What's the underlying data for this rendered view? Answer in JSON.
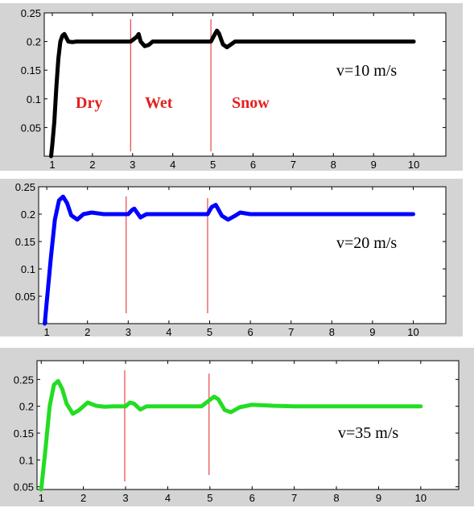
{
  "chart_data": [
    {
      "type": "line",
      "xlim": [
        0.8,
        10.8
      ],
      "ylim": [
        0,
        0.25
      ],
      "xticks": [
        "1",
        "2",
        "3",
        "4",
        "5",
        "6",
        "7",
        "8",
        "9",
        "10"
      ],
      "yticks": [
        "0.05",
        "0.1",
        "0.15",
        "0.2",
        "0.25"
      ],
      "color": "#000000",
      "annotation": "v=10 m/s",
      "regions": [
        "Dry",
        "Wet",
        "Snow"
      ],
      "vlines": [
        2.95,
        4.95
      ],
      "x": [
        0.97,
        1.0,
        1.05,
        1.1,
        1.15,
        1.2,
        1.25,
        1.3,
        1.4,
        1.5,
        1.6,
        2.0,
        2.5,
        2.95,
        3.1,
        3.15,
        3.2,
        3.3,
        3.4,
        3.5,
        3.6,
        4.0,
        4.95,
        5.05,
        5.1,
        5.15,
        5.25,
        5.35,
        5.45,
        5.55,
        5.7,
        6.0,
        8.0,
        10.0
      ],
      "y": [
        0.0,
        0.02,
        0.06,
        0.12,
        0.17,
        0.2,
        0.21,
        0.213,
        0.2,
        0.199,
        0.2,
        0.2,
        0.2,
        0.2,
        0.208,
        0.213,
        0.2,
        0.192,
        0.194,
        0.2,
        0.2,
        0.2,
        0.2,
        0.213,
        0.219,
        0.214,
        0.195,
        0.19,
        0.195,
        0.2,
        0.2,
        0.2,
        0.2,
        0.2
      ]
    },
    {
      "type": "line",
      "xlim": [
        0.8,
        10.8
      ],
      "ylim": [
        0,
        0.25
      ],
      "xticks": [
        "1",
        "2",
        "3",
        "4",
        "5",
        "6",
        "7",
        "8",
        "9",
        "10"
      ],
      "yticks": [
        "0.05",
        "0.1",
        "0.15",
        "0.2",
        "0.25"
      ],
      "color": "#0000ff",
      "annotation": "v=20 m/s",
      "vlines": [
        2.95,
        4.95
      ],
      "x": [
        0.95,
        1.0,
        1.1,
        1.2,
        1.3,
        1.4,
        1.5,
        1.6,
        1.75,
        1.9,
        2.1,
        2.4,
        3.0,
        3.1,
        3.15,
        3.3,
        3.45,
        3.6,
        4.0,
        4.95,
        5.05,
        5.15,
        5.3,
        5.45,
        5.6,
        5.75,
        6.0,
        8.0,
        10.0
      ],
      "y": [
        0.0,
        0.04,
        0.12,
        0.19,
        0.225,
        0.232,
        0.22,
        0.198,
        0.19,
        0.2,
        0.203,
        0.2,
        0.2,
        0.208,
        0.21,
        0.194,
        0.2,
        0.2,
        0.2,
        0.2,
        0.213,
        0.217,
        0.197,
        0.19,
        0.196,
        0.203,
        0.2,
        0.2,
        0.2
      ]
    },
    {
      "type": "line",
      "xlim": [
        0.9,
        10.9
      ],
      "ylim": [
        0.045,
        0.285
      ],
      "xticks": [
        "1",
        "2",
        "3",
        "4",
        "5",
        "6",
        "7",
        "8",
        "9",
        "10"
      ],
      "yticks": [
        "0.05",
        "0.1",
        "0.15",
        "0.2",
        "0.25"
      ],
      "color": "#22dd22",
      "annotation": "v=35 m/s",
      "vlines": [
        2.98,
        4.98
      ],
      "x": [
        1.0,
        1.1,
        1.2,
        1.3,
        1.4,
        1.5,
        1.6,
        1.75,
        1.9,
        2.1,
        2.3,
        2.5,
        2.7,
        3.0,
        3.1,
        3.2,
        3.35,
        3.5,
        3.7,
        4.0,
        4.8,
        5.0,
        5.1,
        5.2,
        5.35,
        5.5,
        5.7,
        6.0,
        6.5,
        7.0,
        10.0
      ],
      "y": [
        0.045,
        0.12,
        0.2,
        0.24,
        0.247,
        0.232,
        0.205,
        0.186,
        0.193,
        0.207,
        0.201,
        0.199,
        0.2,
        0.2,
        0.207,
        0.205,
        0.194,
        0.2,
        0.2,
        0.2,
        0.2,
        0.212,
        0.218,
        0.213,
        0.193,
        0.189,
        0.198,
        0.203,
        0.201,
        0.2,
        0.2
      ]
    }
  ]
}
